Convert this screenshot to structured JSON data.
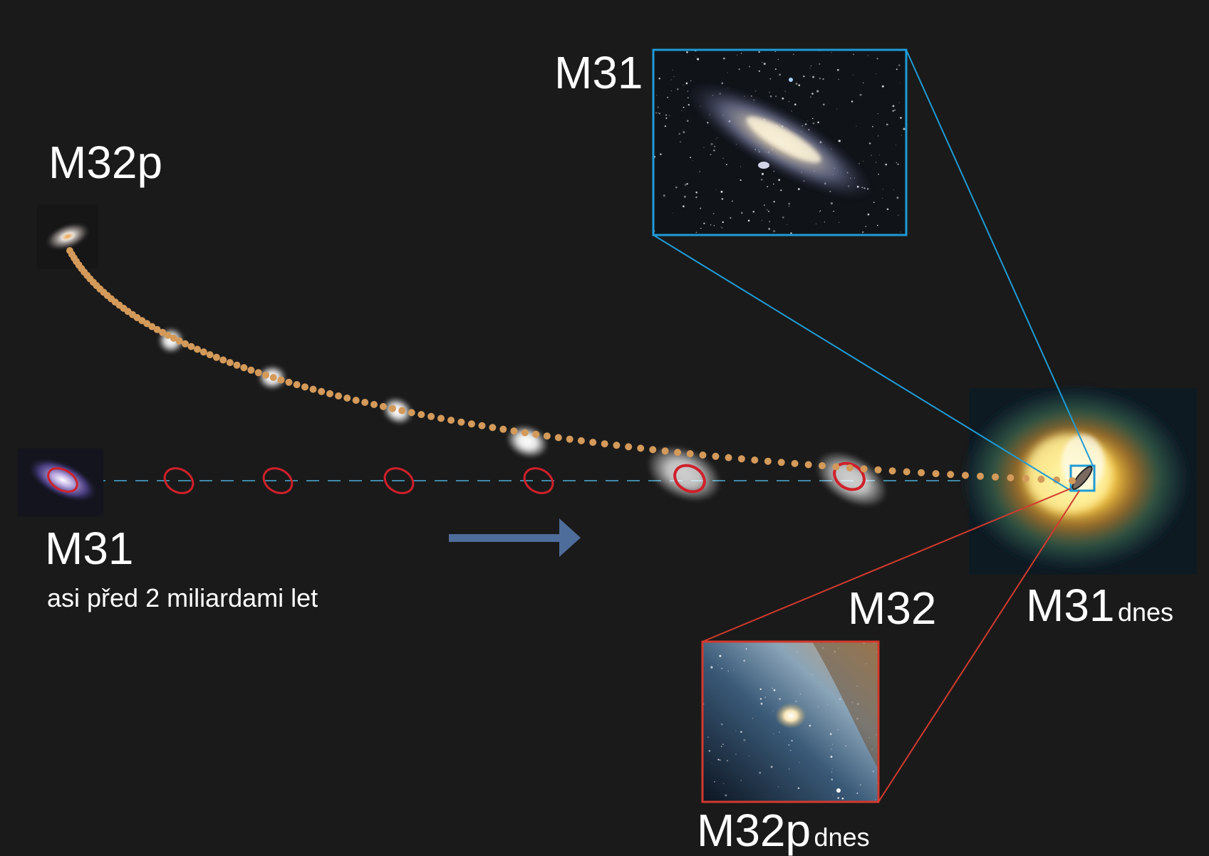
{
  "labels": {
    "m32p_start": "M32p",
    "m31_start": "M31",
    "m31_start_time": "asi před 2 miliardami let",
    "m31_inset": "M31",
    "m32_today": "M32",
    "m31_today": "M31",
    "m31_today_suffix": "dnes",
    "m32p_today": "M32p",
    "m32p_today_suffix": "dnes"
  },
  "colors": {
    "background": "#1a1a1a",
    "trajectory_dots": "#d49a5a",
    "m31_ellipses": "#d0202a",
    "dashed_axis": "#3f8aa8",
    "arrow": "#4f6d9a",
    "inset_m31_frame": "#1f9bd6",
    "inset_m32_frame": "#d23a2e"
  },
  "icons": {
    "direction": "arrow-right-icon"
  }
}
